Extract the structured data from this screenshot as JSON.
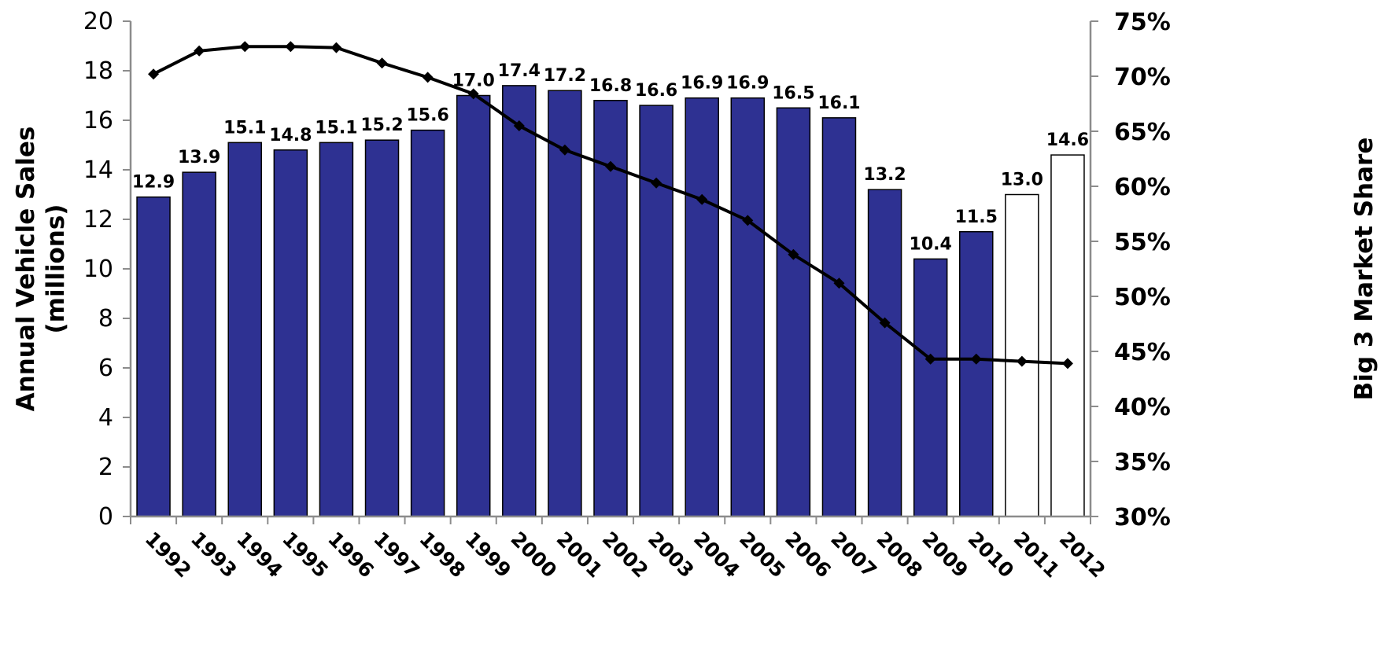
{
  "chart_data": {
    "type": "bar",
    "categories": [
      "1992",
      "1993",
      "1994",
      "1995",
      "1996",
      "1997",
      "1998",
      "1999",
      "2000",
      "2001",
      "2002",
      "2003",
      "2004",
      "2005",
      "2006",
      "2007",
      "2008",
      "2009",
      "2010",
      "2011",
      "2012"
    ],
    "series": [
      {
        "type": "bar",
        "axis": "left",
        "values": [
          12.9,
          13.9,
          15.1,
          14.8,
          15.1,
          15.2,
          15.6,
          17.0,
          17.4,
          17.2,
          16.8,
          16.6,
          16.9,
          16.9,
          16.5,
          16.1,
          13.2,
          10.4,
          11.5,
          13.0,
          14.6
        ],
        "labels": [
          "12.9",
          "13.9",
          "15.1",
          "14.8",
          "15.1",
          "15.2",
          "15.6",
          "17.0",
          "17.4",
          "17.2",
          "16.8",
          "16.6",
          "16.9",
          "16.9",
          "16.5",
          "16.1",
          "13.2",
          "10.4",
          "11.5",
          "13.0",
          "14.6"
        ],
        "fill_colors": [
          "#2e3192",
          "#2e3192",
          "#2e3192",
          "#2e3192",
          "#2e3192",
          "#2e3192",
          "#2e3192",
          "#2e3192",
          "#2e3192",
          "#2e3192",
          "#2e3192",
          "#2e3192",
          "#2e3192",
          "#2e3192",
          "#2e3192",
          "#2e3192",
          "#2e3192",
          "#2e3192",
          "#2e3192",
          "#ffffff",
          "#ffffff"
        ]
      },
      {
        "type": "line",
        "axis": "right",
        "values": [
          70.2,
          72.3,
          72.7,
          72.7,
          72.6,
          71.2,
          69.9,
          68.4,
          65.5,
          63.3,
          61.8,
          60.3,
          58.8,
          56.9,
          53.8,
          51.2,
          47.6,
          44.3,
          44.3,
          44.1,
          43.9
        ],
        "color": "#000000"
      }
    ],
    "ylabel": [
      "Annual Vehicle Sales",
      "(millions)"
    ],
    "ylabel_right": "Big 3 Market Share",
    "ylim": [
      0,
      20
    ],
    "y_ticks": [
      0,
      2,
      4,
      6,
      8,
      10,
      12,
      14,
      16,
      18,
      20
    ],
    "ylim_right": [
      30,
      75
    ],
    "y_ticks_right": [
      "30%",
      "35%",
      "40%",
      "45%",
      "50%",
      "55%",
      "60%",
      "65%",
      "70%",
      "75%"
    ],
    "grid": false,
    "colors": {
      "bar": "#2e3192",
      "bar_forecast": "#ffffff",
      "line": "#000000",
      "axis": "#8c8c8c"
    }
  }
}
